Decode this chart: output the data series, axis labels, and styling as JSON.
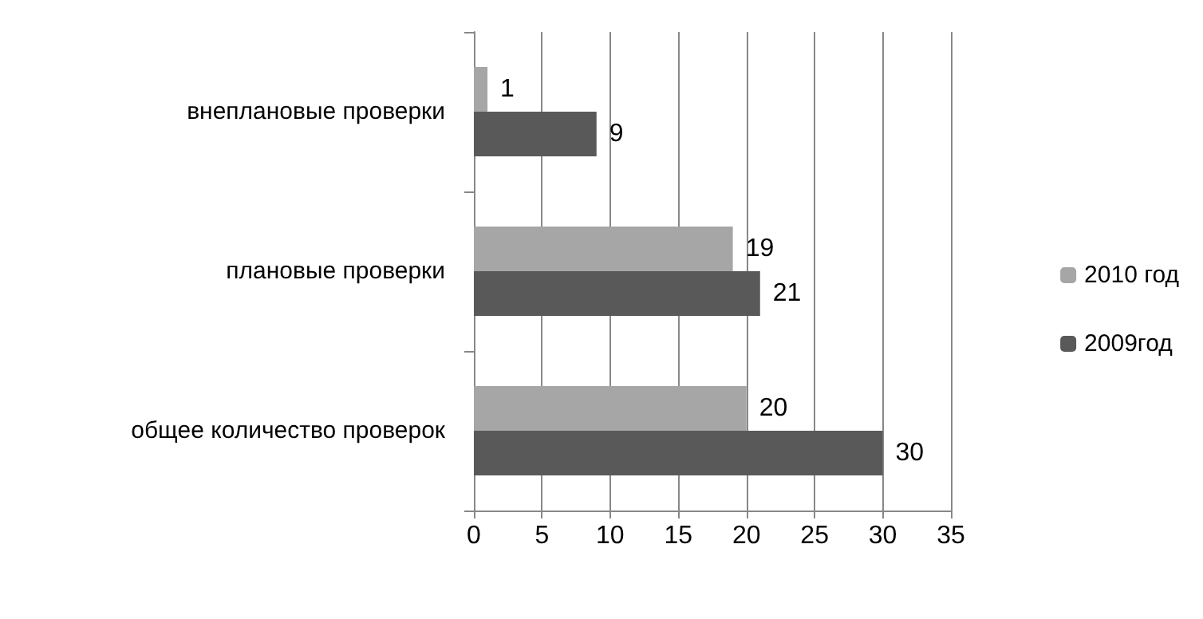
{
  "chart_data": {
    "type": "bar",
    "orientation": "horizontal",
    "categories": [
      "внеплановые проверки",
      "плановые проверки",
      "общее количество проверок"
    ],
    "series": [
      {
        "name": "2010 год",
        "color": "#a6a6a6",
        "values": [
          1,
          19,
          20
        ]
      },
      {
        "name": "2009год",
        "color": "#595959",
        "values": [
          9,
          21,
          30
        ]
      }
    ],
    "xlim": [
      0,
      35
    ],
    "xticks": [
      0,
      5,
      10,
      15,
      20,
      25,
      30,
      35
    ],
    "grid": "x",
    "legend": "right",
    "data_labels": true
  }
}
